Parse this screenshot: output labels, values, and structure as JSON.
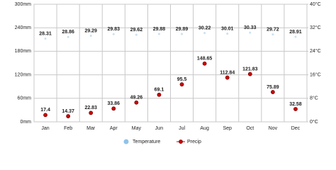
{
  "chart_data": {
    "type": "climate",
    "categories": [
      "Jan",
      "Feb",
      "Mar",
      "Apr",
      "May",
      "Jun",
      "Jul",
      "Aug",
      "Sep",
      "Oct",
      "Nov",
      "Dec"
    ],
    "series": [
      {
        "name": "Temperature",
        "color": "#8fc3ea",
        "axis": "y2",
        "values": [
          28.31,
          28.86,
          29.29,
          29.83,
          29.62,
          29.88,
          29.89,
          30.22,
          30.01,
          30.33,
          29.72,
          28.91
        ]
      },
      {
        "name": "Precip",
        "color": "#cc0000",
        "values": [
          17.4,
          14.37,
          22.83,
          33.86,
          49.26,
          69.1,
          95.5,
          148.65,
          112.84,
          121.83,
          75.89,
          32.58
        ]
      }
    ],
    "ylim": [
      0,
      300
    ],
    "yticks": [
      {
        "value": 0,
        "label": "0mm"
      },
      {
        "value": 60,
        "label": "60mm"
      },
      {
        "value": 120,
        "label": "120mm"
      },
      {
        "value": 180,
        "label": "180mm"
      },
      {
        "value": 240,
        "label": "240mm"
      },
      {
        "value": 300,
        "label": "300mm"
      }
    ],
    "y2lim": [
      0,
      40
    ],
    "y2ticks": [
      {
        "value": 0,
        "label": "0°C"
      },
      {
        "value": 8,
        "label": "8°C"
      },
      {
        "value": 16,
        "label": "16°C"
      },
      {
        "value": 24,
        "label": "24°C"
      },
      {
        "value": 32,
        "label": "32°C"
      },
      {
        "value": 40,
        "label": "40°C"
      }
    ],
    "grid": true
  }
}
